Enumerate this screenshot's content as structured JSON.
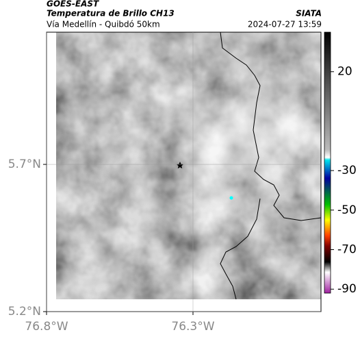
{
  "header": {
    "source": "GOES-EAST",
    "title": "Temperatura de Brillo CH13",
    "subtitle": "Vía Medellín - Quibdó 50km",
    "agency": "SIATA",
    "timestamp": "2024-07-27 13:59"
  },
  "map": {
    "xlim": [
      -76.8,
      -75.863
    ],
    "ylim": [
      5.2,
      6.149
    ],
    "xticks": [
      {
        "value": -76.8,
        "label": "76.8°W"
      },
      {
        "value": -76.3,
        "label": "76.3°W"
      }
    ],
    "yticks": [
      {
        "value": 5.7,
        "label": "5.7°N"
      },
      {
        "value": 5.2,
        "label": "5.2°N"
      }
    ],
    "grid": true
  },
  "colorbar": {
    "lim": [
      -92,
      40
    ],
    "ticks": [
      20,
      -30,
      -50,
      -70,
      -90
    ]
  }
}
